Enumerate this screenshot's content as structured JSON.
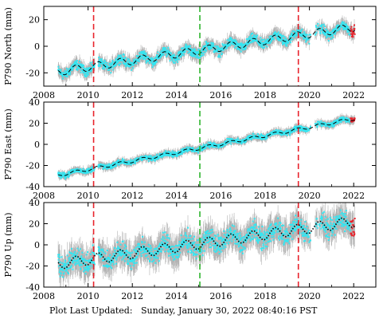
{
  "chart_data": [
    {
      "type": "scatter",
      "ylabel": "P790 North (mm)",
      "xlim": [
        2008,
        2023
      ],
      "ylim": [
        -30,
        30
      ],
      "xticks": [
        2008,
        2010,
        2012,
        2014,
        2016,
        2018,
        2020,
        2022
      ],
      "yticks": [
        -20,
        0,
        20
      ],
      "data_start": 2008.65,
      "data_end": 2022.05,
      "gaps": [
        [
          2010.3,
          2010.45
        ],
        [
          2020.05,
          2020.25
        ]
      ],
      "trend": {
        "slope_mm_per_yr": 2.5,
        "intercept_at_2008_7": -19,
        "seasonal_amplitude": 3
      },
      "scatter_spread": 3,
      "error_bar_half_height": 4,
      "event_lines": [
        {
          "year": 2010.25,
          "color": "#e8222b"
        },
        {
          "year": 2015.05,
          "color": "#2fb52f"
        },
        {
          "year": 2019.5,
          "color": "#e8222b"
        }
      ],
      "recent_points_color": "#e8222b",
      "point_color": "#33e6f2",
      "errorbar_color": "#b4b4b4",
      "trend_style": "dashed"
    },
    {
      "type": "scatter",
      "ylabel": "P790 East (mm)",
      "xlim": [
        2008,
        2023
      ],
      "ylim": [
        -40,
        40
      ],
      "xticks": [
        2008,
        2010,
        2012,
        2014,
        2016,
        2018,
        2020,
        2022
      ],
      "yticks": [
        -40,
        -20,
        0,
        20,
        40
      ],
      "data_start": 2008.65,
      "data_end": 2022.05,
      "gaps": [
        [
          2010.3,
          2010.45
        ],
        [
          2020.05,
          2020.25
        ]
      ],
      "trend": {
        "slope_mm_per_yr": 4.0,
        "intercept_at_2008_7": -29,
        "seasonal_amplitude": 1.5
      },
      "scatter_spread": 2,
      "error_bar_half_height": 3,
      "event_lines": [
        {
          "year": 2010.25,
          "color": "#e8222b"
        },
        {
          "year": 2015.05,
          "color": "#2fb52f"
        },
        {
          "year": 2019.5,
          "color": "#e8222b"
        }
      ],
      "recent_points_color": "#e8222b",
      "point_color": "#33e6f2",
      "errorbar_color": "#b4b4b4",
      "trend_style": "dashed"
    },
    {
      "type": "scatter",
      "ylabel": "P790 Up (mm)",
      "xlim": [
        2008,
        2023
      ],
      "ylim": [
        -40,
        40
      ],
      "xticks": [
        2008,
        2010,
        2012,
        2014,
        2016,
        2018,
        2020,
        2022
      ],
      "yticks": [
        -40,
        -20,
        0,
        20,
        40
      ],
      "data_start": 2008.65,
      "data_end": 2022.05,
      "gaps": [
        [
          2010.3,
          2010.45
        ],
        [
          2020.05,
          2020.25
        ]
      ],
      "trend": {
        "slope_mm_per_yr": 3.0,
        "intercept_at_2008_7": -18,
        "seasonal_amplitude": 5
      },
      "scatter_spread": 8,
      "error_bar_half_height": 10,
      "event_lines": [
        {
          "year": 2010.25,
          "color": "#e8222b"
        },
        {
          "year": 2015.05,
          "color": "#2fb52f"
        },
        {
          "year": 2019.5,
          "color": "#e8222b"
        }
      ],
      "recent_points_color": "#e8222b",
      "point_color": "#33e6f2",
      "errorbar_color": "#b4b4b4",
      "trend_style": "dotted"
    }
  ],
  "footer": {
    "label": "Plot Last Updated:",
    "value": "Sunday, January 30, 2022 08:40:16 PST"
  }
}
